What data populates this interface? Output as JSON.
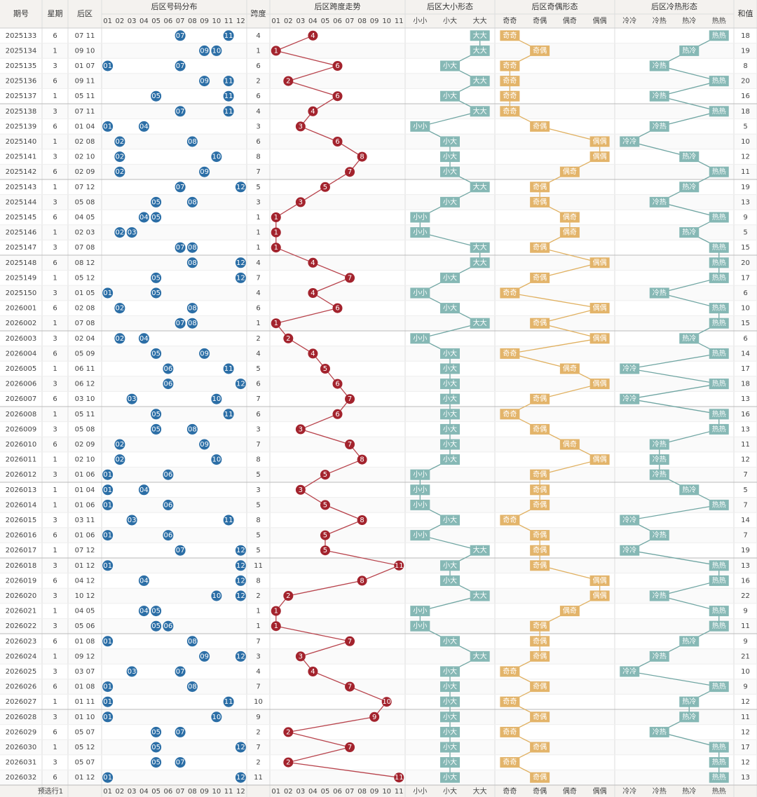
{
  "header": {
    "period": "期号",
    "weekday": "星期",
    "back": "后区",
    "dist": "后区号码分布",
    "span": "跨度",
    "span_trend": "后区跨度走势",
    "size": "后区大小形态",
    "parity": "后区奇偶形态",
    "hotcold": "后区冷热形态",
    "sum": "和值"
  },
  "dist_cols": [
    "01",
    "02",
    "03",
    "04",
    "05",
    "06",
    "07",
    "08",
    "09",
    "10",
    "11",
    "12"
  ],
  "span_cols": [
    "01",
    "02",
    "03",
    "04",
    "05",
    "06",
    "07",
    "08",
    "09",
    "10",
    "11"
  ],
  "size_cols": [
    "小小",
    "小大",
    "大大"
  ],
  "parity_cols": [
    "奇奇",
    "奇偶",
    "偶奇",
    "偶偶"
  ],
  "hotcold_cols": [
    "冷冷",
    "冷热",
    "热冷",
    "热热"
  ],
  "footer": "预选行1",
  "rows": [
    {
      "period": "2025133",
      "weekday": 6,
      "back": [
        "07",
        "11"
      ],
      "span": 4,
      "size": "大大",
      "parity": "奇奇",
      "hotcold": "热热",
      "sum": 18
    },
    {
      "period": "2025134",
      "weekday": 1,
      "back": [
        "09",
        "10"
      ],
      "span": 1,
      "size": "大大",
      "parity": "奇偶",
      "hotcold": "热冷",
      "sum": 19
    },
    {
      "period": "2025135",
      "weekday": 3,
      "back": [
        "01",
        "07"
      ],
      "span": 6,
      "size": "小大",
      "parity": "奇奇",
      "hotcold": "冷热",
      "sum": 8
    },
    {
      "period": "2025136",
      "weekday": 6,
      "back": [
        "09",
        "11"
      ],
      "span": 2,
      "size": "大大",
      "parity": "奇奇",
      "hotcold": "热热",
      "sum": 20
    },
    {
      "period": "2025137",
      "weekday": 1,
      "back": [
        "05",
        "11"
      ],
      "span": 6,
      "size": "小大",
      "parity": "奇奇",
      "hotcold": "冷热",
      "sum": 16
    },
    {
      "period": "2025138",
      "weekday": 3,
      "back": [
        "07",
        "11"
      ],
      "span": 4,
      "size": "大大",
      "parity": "奇奇",
      "hotcold": "热热",
      "sum": 18
    },
    {
      "period": "2025139",
      "weekday": 6,
      "back": [
        "01",
        "04"
      ],
      "span": 3,
      "size": "小小",
      "parity": "奇偶",
      "hotcold": "冷热",
      "sum": 5
    },
    {
      "period": "2025140",
      "weekday": 1,
      "back": [
        "02",
        "08"
      ],
      "span": 6,
      "size": "小大",
      "parity": "偶偶",
      "hotcold": "冷冷",
      "sum": 10
    },
    {
      "period": "2025141",
      "weekday": 3,
      "back": [
        "02",
        "10"
      ],
      "span": 8,
      "size": "小大",
      "parity": "偶偶",
      "hotcold": "热冷",
      "sum": 12
    },
    {
      "period": "2025142",
      "weekday": 6,
      "back": [
        "02",
        "09"
      ],
      "span": 7,
      "size": "小大",
      "parity": "偶奇",
      "hotcold": "热热",
      "sum": 11
    },
    {
      "period": "2025143",
      "weekday": 1,
      "back": [
        "07",
        "12"
      ],
      "span": 5,
      "size": "大大",
      "parity": "奇偶",
      "hotcold": "热冷",
      "sum": 19
    },
    {
      "period": "2025144",
      "weekday": 3,
      "back": [
        "05",
        "08"
      ],
      "span": 3,
      "size": "小大",
      "parity": "奇偶",
      "hotcold": "冷热",
      "sum": 13
    },
    {
      "period": "2025145",
      "weekday": 6,
      "back": [
        "04",
        "05"
      ],
      "span": 1,
      "size": "小小",
      "parity": "偶奇",
      "hotcold": "热热",
      "sum": 9
    },
    {
      "period": "2025146",
      "weekday": 1,
      "back": [
        "02",
        "03"
      ],
      "span": 1,
      "size": "小小",
      "parity": "偶奇",
      "hotcold": "热冷",
      "sum": 5
    },
    {
      "period": "2025147",
      "weekday": 3,
      "back": [
        "07",
        "08"
      ],
      "span": 1,
      "size": "大大",
      "parity": "奇偶",
      "hotcold": "热热",
      "sum": 15
    },
    {
      "period": "2025148",
      "weekday": 6,
      "back": [
        "08",
        "12"
      ],
      "span": 4,
      "size": "大大",
      "parity": "偶偶",
      "hotcold": "热热",
      "sum": 20
    },
    {
      "period": "2025149",
      "weekday": 1,
      "back": [
        "05",
        "12"
      ],
      "span": 7,
      "size": "小大",
      "parity": "奇偶",
      "hotcold": "热热",
      "sum": 17
    },
    {
      "period": "2025150",
      "weekday": 3,
      "back": [
        "01",
        "05"
      ],
      "span": 4,
      "size": "小小",
      "parity": "奇奇",
      "hotcold": "冷热",
      "sum": 6
    },
    {
      "period": "2026001",
      "weekday": 6,
      "back": [
        "02",
        "08"
      ],
      "span": 6,
      "size": "小大",
      "parity": "偶偶",
      "hotcold": "热热",
      "sum": 10
    },
    {
      "period": "2026002",
      "weekday": 1,
      "back": [
        "07",
        "08"
      ],
      "span": 1,
      "size": "大大",
      "parity": "奇偶",
      "hotcold": "热热",
      "sum": 15
    },
    {
      "period": "2026003",
      "weekday": 3,
      "back": [
        "02",
        "04"
      ],
      "span": 2,
      "size": "小小",
      "parity": "偶偶",
      "hotcold": "热冷",
      "sum": 6
    },
    {
      "period": "2026004",
      "weekday": 6,
      "back": [
        "05",
        "09"
      ],
      "span": 4,
      "size": "小大",
      "parity": "奇奇",
      "hotcold": "热热",
      "sum": 14
    },
    {
      "period": "2026005",
      "weekday": 1,
      "back": [
        "06",
        "11"
      ],
      "span": 5,
      "size": "小大",
      "parity": "偶奇",
      "hotcold": "冷冷",
      "sum": 17
    },
    {
      "period": "2026006",
      "weekday": 3,
      "back": [
        "06",
        "12"
      ],
      "span": 6,
      "size": "小大",
      "parity": "偶偶",
      "hotcold": "热热",
      "sum": 18
    },
    {
      "period": "2026007",
      "weekday": 6,
      "back": [
        "03",
        "10"
      ],
      "span": 7,
      "size": "小大",
      "parity": "奇偶",
      "hotcold": "冷冷",
      "sum": 13
    },
    {
      "period": "2026008",
      "weekday": 1,
      "back": [
        "05",
        "11"
      ],
      "span": 6,
      "size": "小大",
      "parity": "奇奇",
      "hotcold": "热热",
      "sum": 16
    },
    {
      "period": "2026009",
      "weekday": 3,
      "back": [
        "05",
        "08"
      ],
      "span": 3,
      "size": "小大",
      "parity": "奇偶",
      "hotcold": "热热",
      "sum": 13
    },
    {
      "period": "2026010",
      "weekday": 6,
      "back": [
        "02",
        "09"
      ],
      "span": 7,
      "size": "小大",
      "parity": "偶奇",
      "hotcold": "冷热",
      "sum": 11
    },
    {
      "period": "2026011",
      "weekday": 1,
      "back": [
        "02",
        "10"
      ],
      "span": 8,
      "size": "小大",
      "parity": "偶偶",
      "hotcold": "冷热",
      "sum": 12
    },
    {
      "period": "2026012",
      "weekday": 3,
      "back": [
        "01",
        "06"
      ],
      "span": 5,
      "size": "小小",
      "parity": "奇偶",
      "hotcold": "冷热",
      "sum": 7
    },
    {
      "period": "2026013",
      "weekday": 1,
      "back": [
        "01",
        "04"
      ],
      "span": 3,
      "size": "小小",
      "parity": "奇偶",
      "hotcold": "热冷",
      "sum": 5
    },
    {
      "period": "2026014",
      "weekday": 1,
      "back": [
        "01",
        "06"
      ],
      "span": 5,
      "size": "小小",
      "parity": "奇偶",
      "hotcold": "热热",
      "sum": 7
    },
    {
      "period": "2026015",
      "weekday": 3,
      "back": [
        "03",
        "11"
      ],
      "span": 8,
      "size": "小大",
      "parity": "奇奇",
      "hotcold": "冷冷",
      "sum": 14
    },
    {
      "period": "2026016",
      "weekday": 6,
      "back": [
        "01",
        "06"
      ],
      "span": 5,
      "size": "小小",
      "parity": "奇偶",
      "hotcold": "冷热",
      "sum": 7
    },
    {
      "period": "2026017",
      "weekday": 1,
      "back": [
        "07",
        "12"
      ],
      "span": 5,
      "size": "大大",
      "parity": "奇偶",
      "hotcold": "冷冷",
      "sum": 19
    },
    {
      "period": "2026018",
      "weekday": 3,
      "back": [
        "01",
        "12"
      ],
      "span": 11,
      "size": "小大",
      "parity": "奇偶",
      "hotcold": "热热",
      "sum": 13
    },
    {
      "period": "2026019",
      "weekday": 6,
      "back": [
        "04",
        "12"
      ],
      "span": 8,
      "size": "小大",
      "parity": "偶偶",
      "hotcold": "热热",
      "sum": 16
    },
    {
      "period": "2026020",
      "weekday": 3,
      "back": [
        "10",
        "12"
      ],
      "span": 2,
      "size": "大大",
      "parity": "偶偶",
      "hotcold": "冷热",
      "sum": 22
    },
    {
      "period": "2026021",
      "weekday": 1,
      "back": [
        "04",
        "05"
      ],
      "span": 1,
      "size": "小小",
      "parity": "偶奇",
      "hotcold": "热热",
      "sum": 9
    },
    {
      "period": "2026022",
      "weekday": 3,
      "back": [
        "05",
        "06"
      ],
      "span": 1,
      "size": "小小",
      "parity": "奇偶",
      "hotcold": "热热",
      "sum": 11
    },
    {
      "period": "2026023",
      "weekday": 6,
      "back": [
        "01",
        "08"
      ],
      "span": 7,
      "size": "小大",
      "parity": "奇偶",
      "hotcold": "热冷",
      "sum": 9
    },
    {
      "period": "2026024",
      "weekday": 1,
      "back": [
        "09",
        "12"
      ],
      "span": 3,
      "size": "大大",
      "parity": "奇偶",
      "hotcold": "冷热",
      "sum": 21
    },
    {
      "period": "2026025",
      "weekday": 3,
      "back": [
        "03",
        "07"
      ],
      "span": 4,
      "size": "小大",
      "parity": "奇奇",
      "hotcold": "冷冷",
      "sum": 10
    },
    {
      "period": "2026026",
      "weekday": 6,
      "back": [
        "01",
        "08"
      ],
      "span": 7,
      "size": "小大",
      "parity": "奇偶",
      "hotcold": "热热",
      "sum": 9
    },
    {
      "period": "2026027",
      "weekday": 1,
      "back": [
        "01",
        "11"
      ],
      "span": 10,
      "size": "小大",
      "parity": "奇奇",
      "hotcold": "热冷",
      "sum": 12
    },
    {
      "period": "2026028",
      "weekday": 3,
      "back": [
        "01",
        "10"
      ],
      "span": 9,
      "size": "小大",
      "parity": "奇偶",
      "hotcold": "热冷",
      "sum": 11
    },
    {
      "period": "2026029",
      "weekday": 6,
      "back": [
        "05",
        "07"
      ],
      "span": 2,
      "size": "小大",
      "parity": "奇奇",
      "hotcold": "冷热",
      "sum": 12
    },
    {
      "period": "2026030",
      "weekday": 1,
      "back": [
        "05",
        "12"
      ],
      "span": 7,
      "size": "小大",
      "parity": "奇偶",
      "hotcold": "热热",
      "sum": 17
    },
    {
      "period": "2026031",
      "weekday": 3,
      "back": [
        "05",
        "07"
      ],
      "span": 2,
      "size": "小大",
      "parity": "奇奇",
      "hotcold": "热热",
      "sum": 12
    },
    {
      "period": "2026032",
      "weekday": 6,
      "back": [
        "01",
        "12"
      ],
      "span": 11,
      "size": "小大",
      "parity": "奇偶",
      "hotcold": "热热",
      "sum": 13
    }
  ]
}
